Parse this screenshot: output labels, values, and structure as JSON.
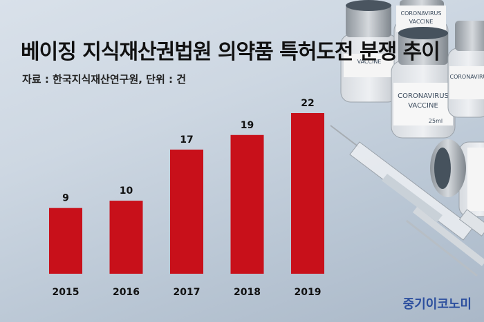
{
  "title": "베이징 지식재산권법원 의약품 특허도전 분쟁 추이",
  "source": "자료 : 한국지식재산연구원, 단위 : 건",
  "brand": "중기이코노미",
  "colors": {
    "bar": "#c8101a",
    "background": "#cdd7e2"
  },
  "background_image": {
    "label_lines": [
      "CORONAVIRUS",
      "VACCINE"
    ],
    "volume": "25ml"
  },
  "chart_data": {
    "type": "bar",
    "title": "베이징 지식재산권법원 의약품 특허도전 분쟁 추이",
    "xlabel": "",
    "ylabel": "",
    "unit": "건",
    "categories": [
      "2015",
      "2016",
      "2017",
      "2018",
      "2019"
    ],
    "values": [
      9,
      10,
      17,
      19,
      22
    ],
    "ylim": [
      0,
      22
    ],
    "grid": false,
    "legend": "none"
  }
}
